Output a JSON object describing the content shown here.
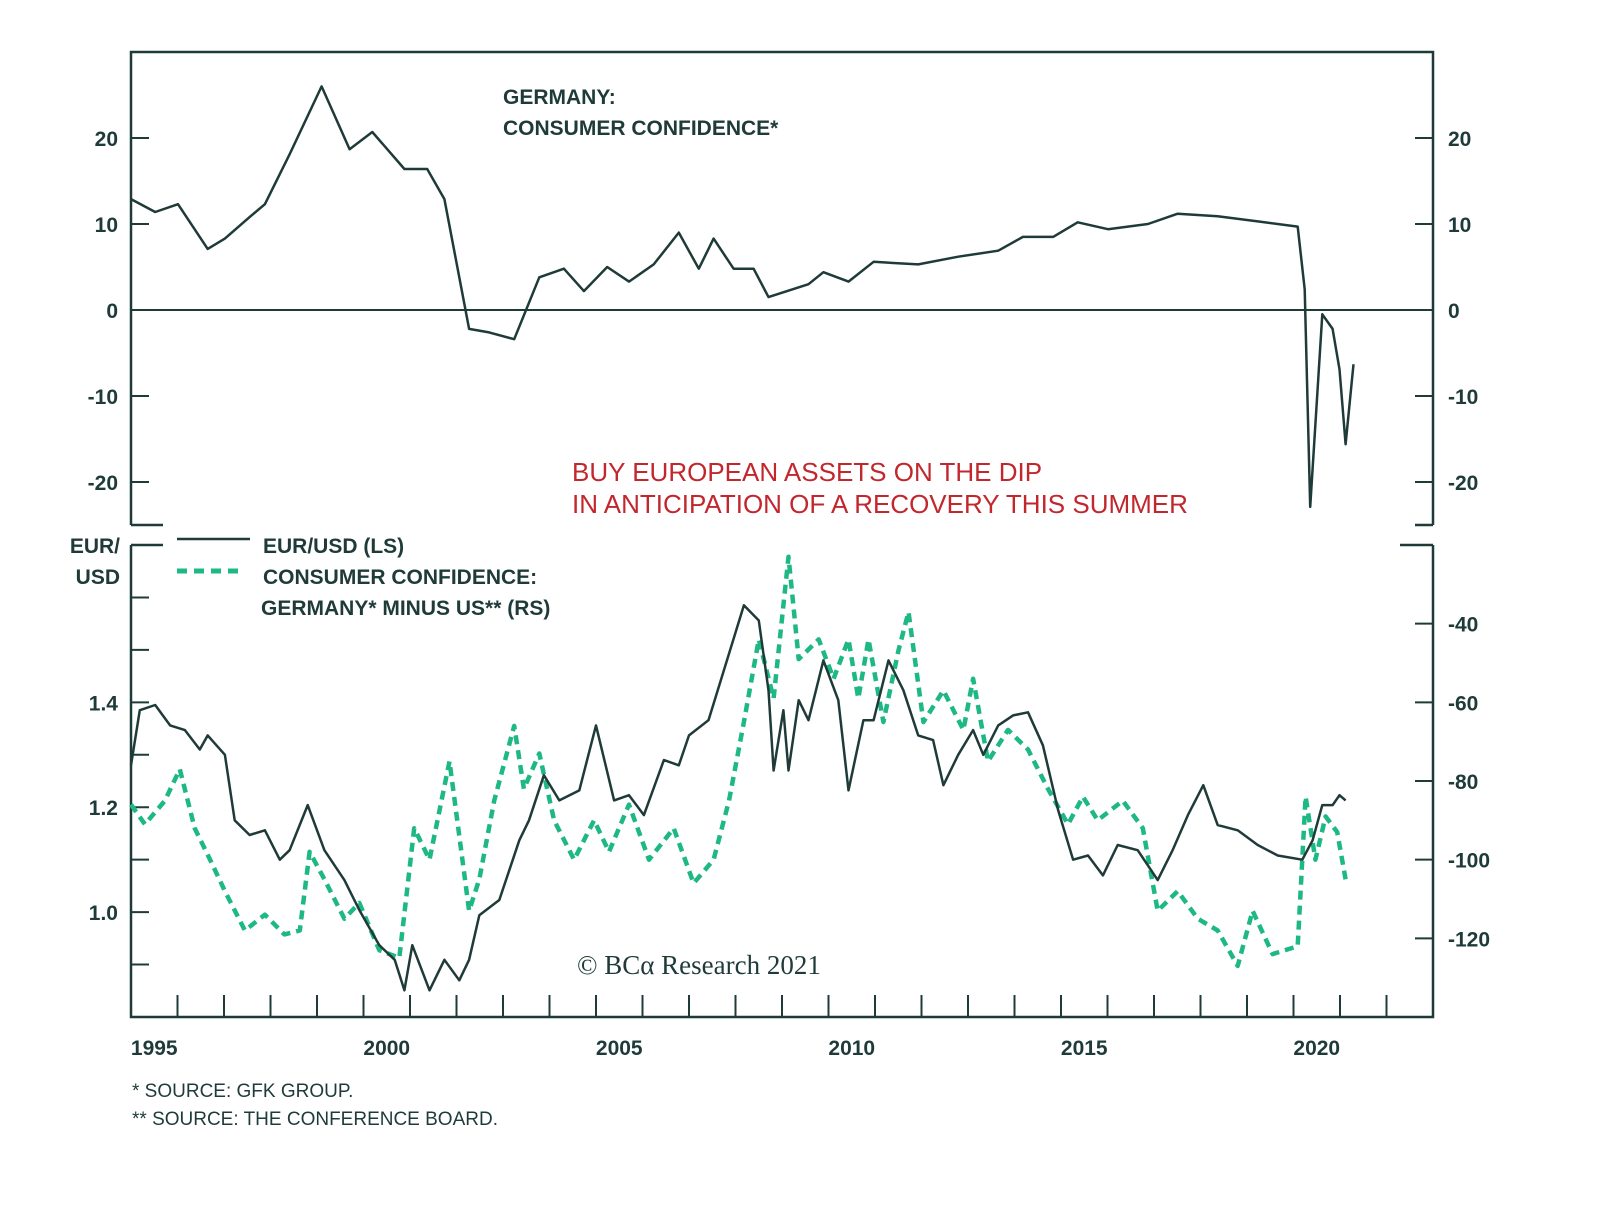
{
  "colors": {
    "ink": "#1f3b39",
    "green": "#1db884",
    "red": "#c1272d"
  },
  "top_title": [
    "GERMANY:",
    "CONSUMER CONFIDENCE*"
  ],
  "annotation": [
    "BUY EUROPEAN ASSETS ON THE DIP",
    "IN ANTICIPATION OF A RECOVERY THIS SUMMER"
  ],
  "bottom_left_unit": [
    "EUR/",
    "USD"
  ],
  "legend": [
    {
      "label": [
        "EUR/USD (LS)"
      ],
      "style": "solid"
    },
    {
      "label": [
        "CONSUMER CONFIDENCE:",
        "GERMANY* MINUS US** (RS)"
      ],
      "style": "dashed"
    }
  ],
  "copyright": "© BCα Research 2021",
  "footnotes": [
    "*  SOURCE: GFK GROUP.",
    "** SOURCE: THE CONFERENCE BOARD."
  ],
  "chart_data": [
    {
      "type": "line",
      "title": "GERMANY: CONSUMER CONFIDENCE*",
      "xlim": [
        1995,
        2023
      ],
      "ylim": [
        -25,
        30
      ],
      "yticks": [
        20,
        10,
        0,
        -10,
        -20
      ],
      "ylabels_both_sides": true,
      "zero_line": true,
      "series": [
        {
          "color": "#1f3b39",
          "style": "solid",
          "x": [
            1995.0,
            1995.52,
            1996.01,
            1996.65,
            1997.02,
            1997.55,
            1997.88,
            1998.41,
            1999.1,
            1999.7,
            2000.19,
            2000.88,
            2001.37,
            2001.74,
            2002.27,
            2002.7,
            2003.24,
            2003.78,
            2004.31,
            2004.74,
            2005.24,
            2005.71,
            2006.24,
            2006.78,
            2007.21,
            2007.53,
            2007.96,
            2008.39,
            2008.71,
            2009.57,
            2009.89,
            2010.43,
            2010.97,
            2011.93,
            2012.79,
            2013.65,
            2014.18,
            2014.83,
            2015.36,
            2016.01,
            2016.87,
            2017.51,
            2018.37,
            2019.23,
            2020.09,
            2020.24,
            2020.36,
            2020.62,
            2020.84,
            2020.99,
            2021.12,
            2021.29
          ],
          "y": [
            12.9,
            11.4,
            12.3,
            7.1,
            8.3,
            10.8,
            12.3,
            18.1,
            26,
            18.7,
            20.7,
            16.4,
            16.4,
            12.9,
            -2.2,
            -2.6,
            -3.4,
            3.8,
            4.8,
            2.2,
            5,
            3.3,
            5.3,
            9,
            4.8,
            8.3,
            4.8,
            4.8,
            1.5,
            3,
            4.4,
            3.3,
            5.6,
            5.3,
            6.2,
            6.9,
            8.5,
            8.5,
            10.2,
            9.4,
            10,
            11.2,
            10.9,
            10.3,
            9.7,
            2.4,
            -22.9,
            -0.5,
            -2.2,
            -6.9,
            -15.6,
            -6.3
          ]
        }
      ]
    },
    {
      "type": "line",
      "xlim": [
        1995,
        2023
      ],
      "xticks": [
        1995,
        2000,
        2005,
        2010,
        2015,
        2020
      ],
      "ylim_left": [
        0.8,
        1.7
      ],
      "yticks_left": [
        1.0,
        1.2,
        1.4
      ],
      "ylabel_left": "EUR/ USD",
      "ylim_right": [
        -140,
        -20
      ],
      "yticks_right": [
        -40,
        -60,
        -80,
        -100,
        -120
      ],
      "series": [
        {
          "name": "EUR/USD (LS)",
          "axis": "left",
          "color": "#1f3b39",
          "style": "solid",
          "x": [
            1995.0,
            1995.19,
            1995.52,
            1995.84,
            1996.16,
            1996.48,
            1996.65,
            1997.02,
            1997.23,
            1997.55,
            1997.88,
            1998.2,
            1998.41,
            1998.8,
            1999.16,
            1999.59,
            1999.91,
            2000.34,
            2000.67,
            2000.88,
            2001.05,
            2001.42,
            2001.74,
            2002.06,
            2002.27,
            2002.49,
            2002.92,
            2003.35,
            2003.56,
            2003.88,
            2004.21,
            2004.64,
            2005.0,
            2005.39,
            2005.71,
            2006.03,
            2006.46,
            2006.78,
            2007.0,
            2007.42,
            2007.75,
            2008.18,
            2008.5,
            2008.71,
            2008.82,
            2009.03,
            2009.14,
            2009.36,
            2009.57,
            2009.89,
            2010.21,
            2010.43,
            2010.75,
            2010.97,
            2011.29,
            2011.61,
            2011.93,
            2012.25,
            2012.47,
            2012.79,
            2013.11,
            2013.33,
            2013.65,
            2013.97,
            2014.29,
            2014.61,
            2014.94,
            2015.26,
            2015.58,
            2015.9,
            2016.22,
            2016.65,
            2017.08,
            2017.4,
            2017.73,
            2018.06,
            2018.37,
            2018.8,
            2019.23,
            2019.66,
            2020.19,
            2020.41,
            2020.62,
            2020.84,
            2020.99,
            2021.12
          ],
          "y": [
            1.28,
            1.385,
            1.395,
            1.356,
            1.347,
            1.31,
            1.337,
            1.3,
            1.175,
            1.147,
            1.156,
            1.1,
            1.118,
            1.204,
            1.118,
            1.061,
            1.004,
            0.937,
            0.909,
            0.851,
            0.937,
            0.851,
            0.909,
            0.87,
            0.909,
            0.994,
            1.023,
            1.137,
            1.175,
            1.261,
            1.213,
            1.232,
            1.356,
            1.213,
            1.223,
            1.185,
            1.29,
            1.28,
            1.337,
            1.366,
            1.461,
            1.585,
            1.556,
            1.423,
            1.27,
            1.385,
            1.27,
            1.404,
            1.366,
            1.48,
            1.404,
            1.232,
            1.366,
            1.366,
            1.48,
            1.423,
            1.337,
            1.328,
            1.242,
            1.3,
            1.347,
            1.3,
            1.356,
            1.375,
            1.381,
            1.318,
            1.194,
            1.1,
            1.108,
            1.07,
            1.128,
            1.118,
            1.061,
            1.118,
            1.185,
            1.242,
            1.166,
            1.156,
            1.128,
            1.108,
            1.1,
            1.137,
            1.204,
            1.204,
            1.223,
            1.213
          ]
        },
        {
          "name": "CONSUMER CONFIDENCE: GERMANY* MINUS US** (RS)",
          "axis": "right",
          "color": "#1db884",
          "style": "dashed",
          "x": [
            1995.0,
            1995.3,
            1995.73,
            1996.05,
            1996.37,
            1996.7,
            1997.02,
            1997.45,
            1997.88,
            1998.3,
            1998.63,
            1998.84,
            1999.16,
            1999.59,
            1999.91,
            2000.34,
            2000.77,
            2001.09,
            2001.42,
            2001.85,
            2002.27,
            2002.49,
            2002.81,
            2003.24,
            2003.45,
            2003.78,
            2004.1,
            2004.53,
            2004.96,
            2005.28,
            2005.71,
            2006.14,
            2006.67,
            2007.1,
            2007.53,
            2007.86,
            2008.18,
            2008.5,
            2008.82,
            2009.14,
            2009.36,
            2009.79,
            2010.11,
            2010.43,
            2010.64,
            2010.86,
            2011.18,
            2011.5,
            2011.72,
            2012.04,
            2012.47,
            2012.9,
            2013.11,
            2013.43,
            2013.86,
            2014.29,
            2014.72,
            2015.15,
            2015.47,
            2015.79,
            2016.33,
            2016.76,
            2017.08,
            2017.51,
            2017.94,
            2018.37,
            2018.8,
            2019.12,
            2019.55,
            2020.09,
            2020.26,
            2020.47,
            2020.69,
            2020.94,
            2021.12
          ],
          "y": [
            -86,
            -91,
            -85,
            -77,
            -92,
            -100,
            -108,
            -118,
            -114,
            -119,
            -118,
            -98,
            -105,
            -115,
            -111,
            -123,
            -125,
            -92,
            -100,
            -75,
            -113,
            -105,
            -85,
            -66,
            -82,
            -73,
            -90,
            -100,
            -90,
            -98,
            -86,
            -100,
            -92,
            -106,
            -100,
            -85,
            -65,
            -44,
            -59,
            -23,
            -49,
            -44,
            -54,
            -44,
            -59,
            -44,
            -65,
            -47,
            -37,
            -65,
            -57,
            -67,
            -54,
            -75,
            -67,
            -72,
            -82,
            -91,
            -84,
            -90,
            -85,
            -92,
            -113,
            -108,
            -115,
            -118,
            -127,
            -113,
            -124,
            -122,
            -84,
            -100,
            -89,
            -93,
            -105
          ]
        }
      ]
    }
  ]
}
